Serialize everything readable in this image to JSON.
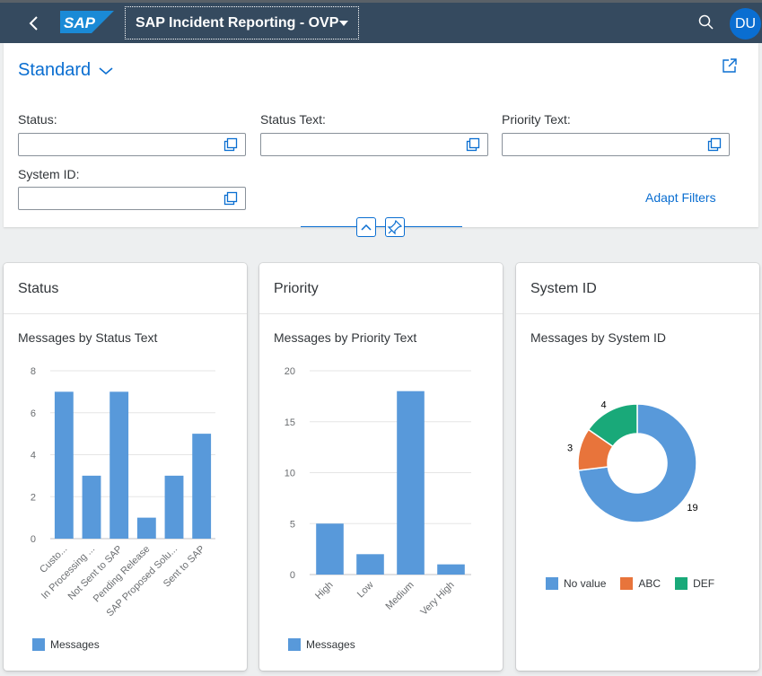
{
  "shell": {
    "logo_text": "SAP",
    "app_title": "SAP Incident Reporting - OVP",
    "avatar_initials": "DU",
    "colors": {
      "bar": "#354a5f",
      "avatar": "#0a6ed1"
    },
    "icons": [
      "back-icon",
      "search-icon",
      "caret-down-icon"
    ]
  },
  "filterbar": {
    "variant": "Standard",
    "fields": [
      {
        "label": "Status:",
        "value": ""
      },
      {
        "label": "Status Text:",
        "value": ""
      },
      {
        "label": "Priority Text:",
        "value": ""
      },
      {
        "label": "System ID:",
        "value": ""
      }
    ],
    "adapt_filters": "Adapt Filters",
    "icons": [
      "share-icon",
      "value-help-icon",
      "collapse-icon",
      "pin-icon"
    ]
  },
  "cards": [
    {
      "title": "Status",
      "subtitle": "Messages by Status Text",
      "legend": "Messages",
      "chart_data": {
        "type": "bar",
        "categories": [
          "Custo...",
          "In Processing ...",
          "Not Sent to SAP",
          "Pending Release",
          "SAP Proposed Solu...",
          "Sent to SAP"
        ],
        "series": [
          {
            "name": "Messages",
            "values": [
              7,
              3,
              7,
              1,
              3,
              5
            ]
          }
        ],
        "yticks": [
          "0",
          "2",
          "4",
          "6",
          "8"
        ],
        "ylim": [
          0,
          8
        ],
        "color": "#5899da"
      }
    },
    {
      "title": "Priority",
      "subtitle": "Messages by Priority Text",
      "legend": "Messages",
      "chart_data": {
        "type": "bar",
        "categories": [
          "High",
          "Low",
          "Medium",
          "Very High"
        ],
        "series": [
          {
            "name": "Messages",
            "values": [
              5,
              2,
              18,
              1
            ]
          }
        ],
        "yticks": [
          "0",
          "5",
          "10",
          "15",
          "20"
        ],
        "ylim": [
          0,
          20
        ],
        "color": "#5899da"
      }
    },
    {
      "title": "System ID",
      "subtitle": "Messages by System ID",
      "chart_data": {
        "type": "pie",
        "donut": true,
        "slices": [
          {
            "label": "No value",
            "value": 19,
            "color": "#5899da"
          },
          {
            "label": "ABC",
            "value": 3,
            "color": "#e8743b"
          },
          {
            "label": "DEF",
            "value": 4,
            "color": "#19a979"
          }
        ]
      }
    }
  ]
}
